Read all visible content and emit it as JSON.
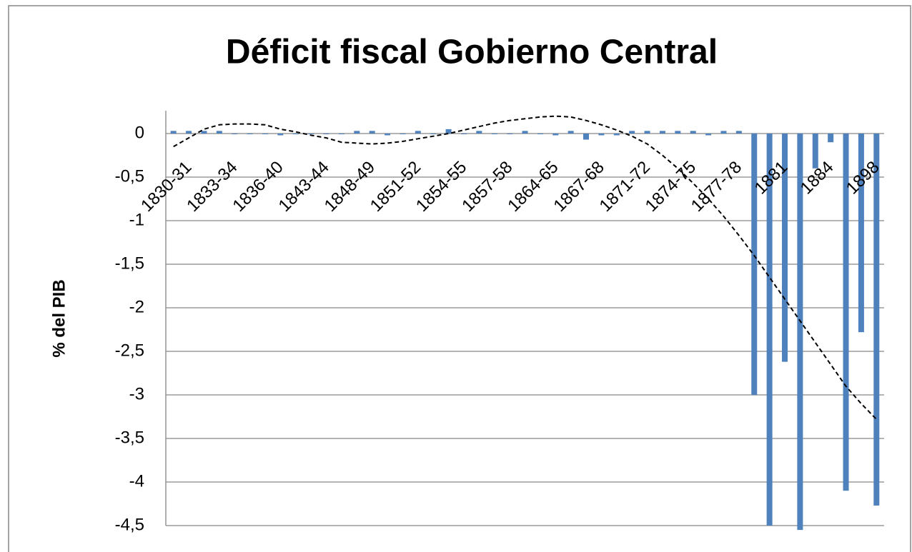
{
  "chart_data": {
    "type": "bar",
    "title": "Déficit fiscal Gobierno Central",
    "y_label": "% del PIB",
    "categories": [
      "1830-31",
      null,
      null,
      "1833-34",
      null,
      null,
      "1836-40",
      null,
      null,
      "1843-44",
      null,
      null,
      "1848-49",
      null,
      null,
      "1851-52",
      null,
      null,
      "1854-55",
      null,
      null,
      "1857-58",
      null,
      null,
      "1864-65",
      null,
      null,
      "1867-68",
      null,
      null,
      "1871-72",
      null,
      null,
      "1874-75",
      null,
      null,
      "1877-78",
      null,
      null,
      "1881",
      null,
      null,
      "1884",
      null,
      null,
      "1898",
      null
    ],
    "values": [
      0.03,
      0.03,
      0.03,
      0.03,
      0,
      0,
      0,
      -0.02,
      0,
      0,
      0,
      0,
      0.03,
      0.03,
      -0.02,
      0,
      0.03,
      0,
      0.05,
      0,
      0.03,
      0,
      0,
      0.03,
      0,
      -0.02,
      0.03,
      -0.07,
      -0.02,
      -0.02,
      0.03,
      0.03,
      0.03,
      0.03,
      0.03,
      -0.02,
      0.03,
      0.03,
      -3.0,
      -4.5,
      -2.62,
      -4.55,
      -0.4,
      -0.1,
      -4.1,
      -2.28,
      -4.27
    ],
    "color": "#4f81bd",
    "trendline": {
      "color": "#000000",
      "dashed": true,
      "values": [
        -0.15,
        -0.05,
        0.05,
        0.1,
        0.11,
        0.11,
        0.1,
        0.05,
        0.02,
        -0.02,
        -0.05,
        -0.1,
        -0.11,
        -0.12,
        -0.11,
        -0.09,
        -0.06,
        -0.03,
        0,
        0.04,
        0.08,
        0.12,
        0.15,
        0.17,
        0.19,
        0.2,
        0.19,
        0.15,
        0.1,
        0.04,
        -0.03,
        -0.12,
        -0.25,
        -0.4,
        -0.57,
        -0.75,
        -0.95,
        -1.17,
        -1.4,
        -1.65,
        -1.9,
        -2.15,
        -2.4,
        -2.65,
        -2.9,
        -3.1,
        -3.28
      ]
    },
    "ylim": [
      -4.5,
      0.25
    ],
    "yticks": [
      0,
      {
        "value": -0.5,
        "label": "-0,5"
      },
      -1,
      {
        "value": -1.5,
        "label": "-1,5"
      },
      -2,
      {
        "value": -2.5,
        "label": "-2,5"
      },
      -3,
      {
        "value": -3.5,
        "label": "-3,5"
      },
      -4,
      {
        "value": -4.5,
        "label": "-4,5"
      }
    ],
    "grid": true
  }
}
